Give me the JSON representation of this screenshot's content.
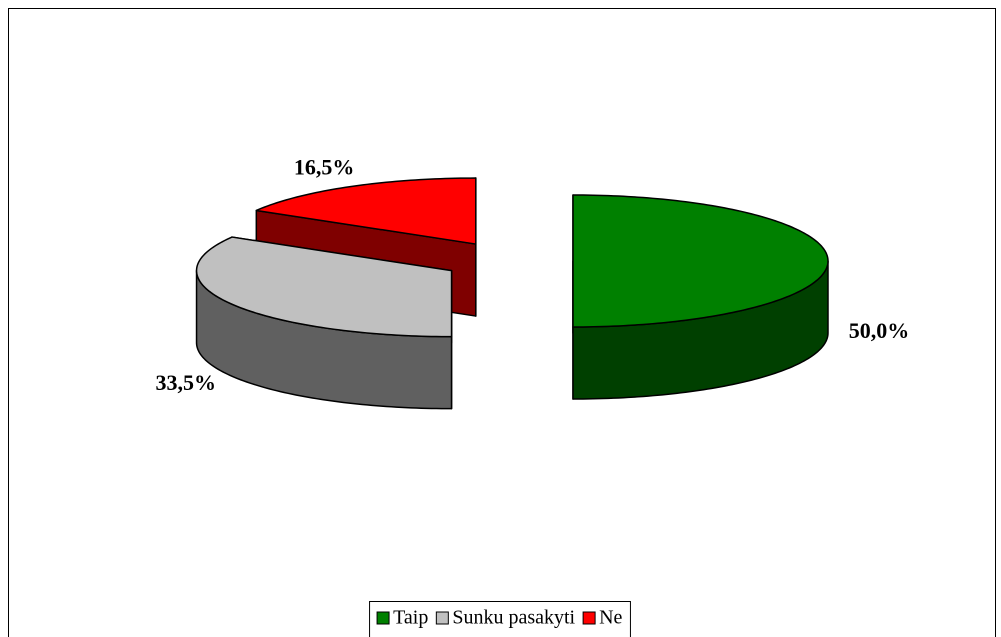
{
  "chart_data": {
    "type": "pie",
    "categories": [
      "Taip",
      "Sunku pasakyti",
      "Ne"
    ],
    "values": [
      50.0,
      33.5,
      16.5
    ],
    "value_labels": [
      "50,0%",
      "33,5%",
      "16,5%"
    ],
    "colors": [
      "#008000",
      "#c0c0c0",
      "#ff0000"
    ],
    "legend": "bottom"
  }
}
